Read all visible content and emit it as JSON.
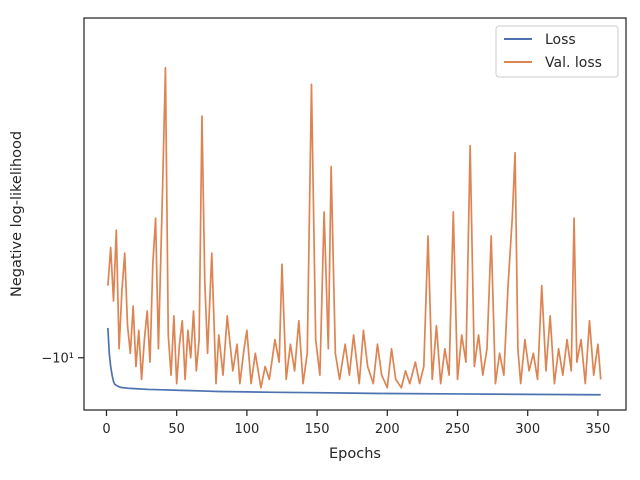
{
  "chart_data": {
    "type": "line",
    "title": "",
    "xlabel": "Epochs",
    "ylabel": "Negative log-likelihood",
    "xlim": [
      -16,
      370
    ],
    "x_ticks": [
      0,
      50,
      100,
      150,
      200,
      250,
      300,
      350
    ],
    "y_scale": "symlog",
    "y_ticks": [
      {
        "value": -10,
        "label": "−10¹"
      }
    ],
    "legend_placement": "top-right",
    "grid": false,
    "series": [
      {
        "name": "Loss",
        "color": "#4c72b0",
        "x": [
          1,
          2,
          3,
          4,
          5,
          6,
          8,
          10,
          15,
          20,
          30,
          40,
          50,
          60,
          70,
          80,
          100,
          120,
          150,
          175,
          200,
          250,
          300,
          350,
          352
        ],
        "y": [
          -9.35,
          -9.9,
          -10.2,
          -10.4,
          -10.55,
          -10.62,
          -10.66,
          -10.69,
          -10.71,
          -10.72,
          -10.74,
          -10.75,
          -10.76,
          -10.77,
          -10.78,
          -10.79,
          -10.8,
          -10.81,
          -10.82,
          -10.83,
          -10.84,
          -10.85,
          -10.86,
          -10.87,
          -10.87
        ]
      },
      {
        "name": "Val. loss",
        "color": "#dd8452",
        "x": [
          1,
          3,
          5,
          7,
          9,
          11,
          13,
          15,
          17,
          19,
          21,
          23,
          25,
          27,
          29,
          31,
          33,
          35,
          37,
          40,
          42,
          44,
          46,
          48,
          50,
          52,
          54,
          56,
          58,
          60,
          62,
          64,
          66,
          68,
          70,
          72,
          75,
          78,
          80,
          83,
          86,
          90,
          93,
          95,
          98,
          100,
          103,
          106,
          110,
          113,
          116,
          120,
          123,
          125,
          128,
          131,
          134,
          137,
          140,
          143,
          146,
          149,
          152,
          155,
          158,
          160,
          163,
          166,
          170,
          173,
          176,
          180,
          183,
          186,
          190,
          193,
          196,
          200,
          203,
          206,
          210,
          213,
          216,
          220,
          223,
          226,
          229,
          232,
          235,
          238,
          241,
          244,
          247,
          250,
          253,
          256,
          259,
          262,
          265,
          268,
          271,
          274,
          277,
          280,
          283,
          286,
          289,
          291,
          293,
          295,
          298,
          301,
          304,
          307,
          310,
          313,
          316,
          319,
          322,
          325,
          328,
          331,
          333,
          335,
          338,
          341,
          344,
          347,
          350,
          352
        ],
        "y": [
          -8.5,
          -7.8,
          -8.8,
          -7.5,
          -9.8,
          -8.6,
          -7.9,
          -9.3,
          -9.9,
          -8.9,
          -10.2,
          -9.4,
          -10.5,
          -9.6,
          -9.0,
          -10.1,
          -8.1,
          -7.3,
          -9.8,
          -6.8,
          -5.2,
          -9.5,
          -10.4,
          -9.1,
          -10.6,
          -9.7,
          -9.2,
          -10.5,
          -9.4,
          -10.0,
          -9.0,
          -10.3,
          -9.6,
          -5.8,
          -8.4,
          -9.9,
          -7.9,
          -10.6,
          -9.5,
          -10.4,
          -9.1,
          -10.3,
          -9.7,
          -10.6,
          -9.8,
          -9.4,
          -10.6,
          -9.9,
          -10.7,
          -10.2,
          -10.5,
          -9.6,
          -10.1,
          -8.1,
          -10.5,
          -9.7,
          -10.3,
          -9.2,
          -10.6,
          -9.9,
          -5.4,
          -9.6,
          -10.4,
          -7.2,
          -9.8,
          -6.5,
          -9.9,
          -10.5,
          -9.7,
          -10.4,
          -9.5,
          -10.6,
          -9.4,
          -10.2,
          -10.6,
          -9.7,
          -10.4,
          -10.7,
          -9.8,
          -10.5,
          -10.7,
          -10.3,
          -10.6,
          -10.1,
          -10.6,
          -10.2,
          -7.6,
          -10.5,
          -9.3,
          -10.6,
          -9.8,
          -10.4,
          -7.2,
          -10.5,
          -9.5,
          -10.1,
          -6.2,
          -10.2,
          -9.5,
          -10.4,
          -9.8,
          -7.6,
          -10.6,
          -9.9,
          -10.4,
          -8.5,
          -7.3,
          -6.3,
          -9.8,
          -10.6,
          -9.6,
          -10.3,
          -9.9,
          -10.5,
          -8.5,
          -10.3,
          -9.1,
          -10.6,
          -9.8,
          -10.4,
          -9.6,
          -10.3,
          -7.3,
          -10.1,
          -9.6,
          -10.6,
          -9.2,
          -10.4,
          -9.7,
          -10.5
        ]
      }
    ]
  }
}
